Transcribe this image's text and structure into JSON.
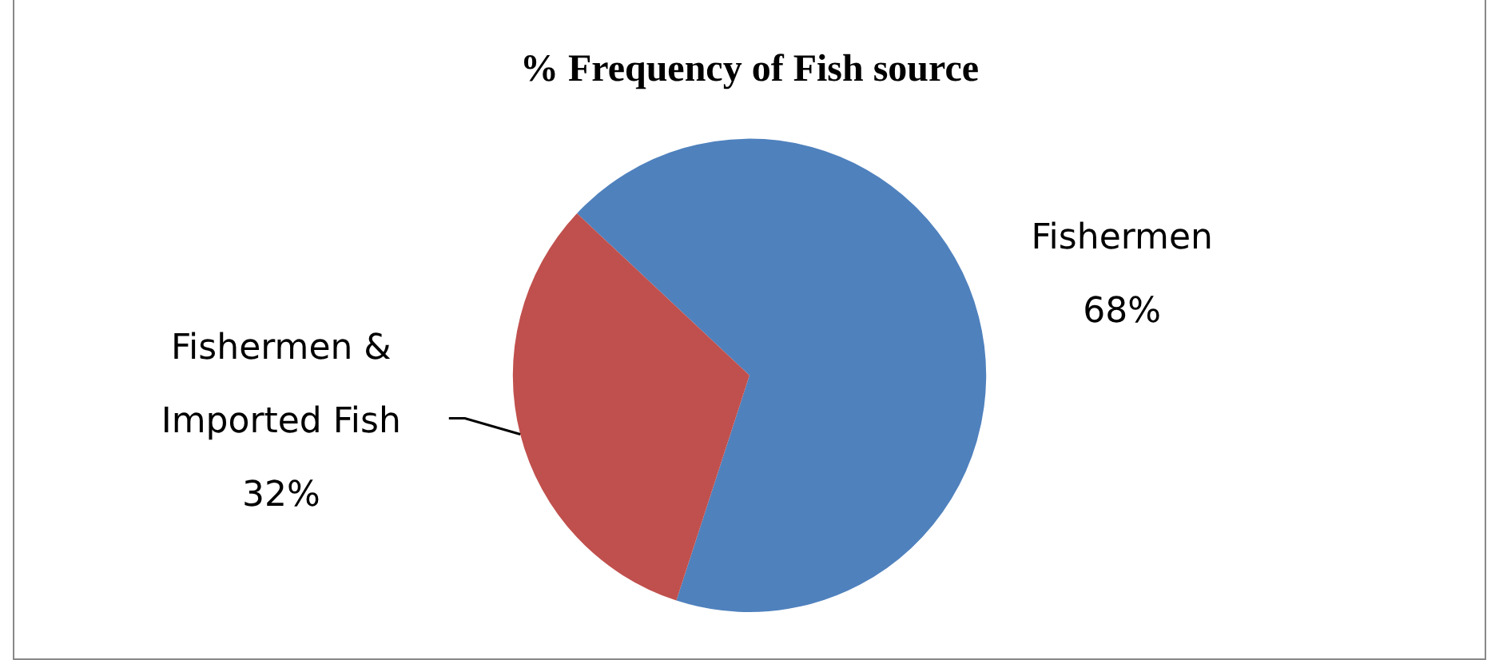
{
  "chart_data": {
    "type": "pie",
    "title": "% Frequency of Fish source",
    "categories": [
      "Fishermen",
      "Fishermen & Imported Fish"
    ],
    "values": [
      68,
      32
    ],
    "colors": [
      "#4f81bd",
      "#c0504d"
    ],
    "value_labels": [
      "68%",
      "32%"
    ],
    "legend": false
  }
}
